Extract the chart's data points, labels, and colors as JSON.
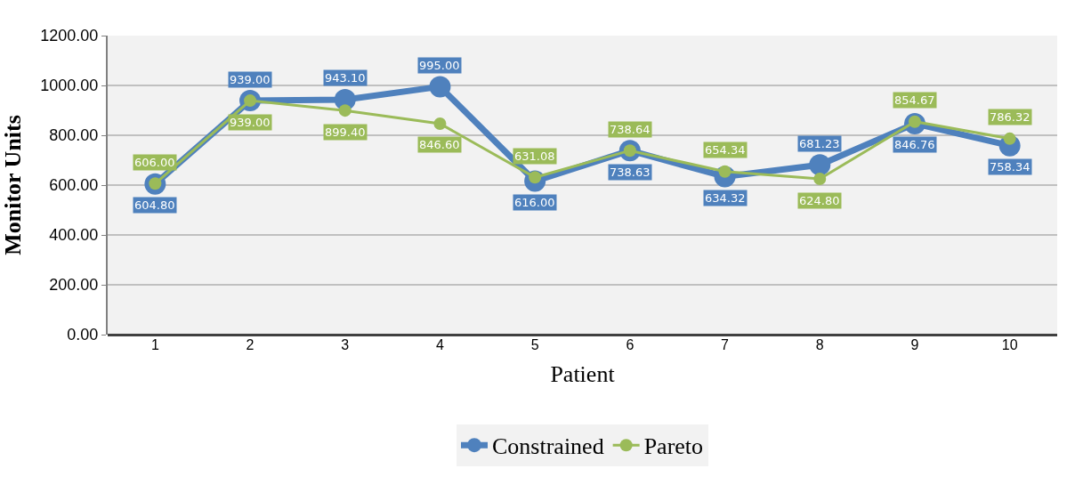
{
  "chart_data": {
    "type": "line",
    "xlabel": "Patient",
    "ylabel": "Monitor Units",
    "categories": [
      "1",
      "2",
      "3",
      "4",
      "5",
      "6",
      "7",
      "8",
      "9",
      "10"
    ],
    "series": [
      {
        "name": "Constrained",
        "color": "#4f81bd",
        "values": [
          604.8,
          939.0,
          943.1,
          995.0,
          616.0,
          738.63,
          634.32,
          681.23,
          846.76,
          758.34
        ],
        "value_labels": [
          "604.80",
          "939.00",
          "943.10",
          "995.00",
          "616.00",
          "738.63",
          "634.32",
          "681.23",
          "846.76",
          "758.34"
        ]
      },
      {
        "name": "Pareto",
        "color": "#9bbb59",
        "values": [
          606.0,
          939.0,
          899.4,
          846.6,
          631.08,
          738.64,
          654.34,
          624.8,
          854.67,
          786.32
        ],
        "value_labels": [
          "606.00",
          "939.00",
          "899.40",
          "846.60",
          "631.08",
          "738.64",
          "654.34",
          "624.80",
          "854.67",
          "786.32"
        ]
      }
    ],
    "ylim": [
      0,
      1200
    ],
    "yticks": [
      {
        "value": 0,
        "label": "0.00"
      },
      {
        "value": 200,
        "label": "200.00"
      },
      {
        "value": 400,
        "label": "400.00"
      },
      {
        "value": 600,
        "label": "600.00"
      },
      {
        "value": 800,
        "label": "800.00"
      },
      {
        "value": 1000,
        "label": "1000.00"
      },
      {
        "value": 1200,
        "label": "1200.00"
      }
    ],
    "grid": "y",
    "legend": "bottom",
    "marker": "circle",
    "line_style": "solid"
  }
}
